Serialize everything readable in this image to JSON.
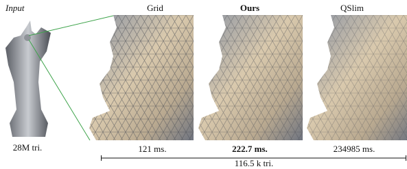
{
  "input": {
    "label": "Input",
    "caption": "28M tri."
  },
  "panels": [
    {
      "label": "Grid",
      "time": "121 ms."
    },
    {
      "label": "Ours",
      "time": "222.7 ms."
    },
    {
      "label": "QSlim",
      "time": "234985 ms."
    }
  ],
  "shared_caption": "116.5 k tri."
}
